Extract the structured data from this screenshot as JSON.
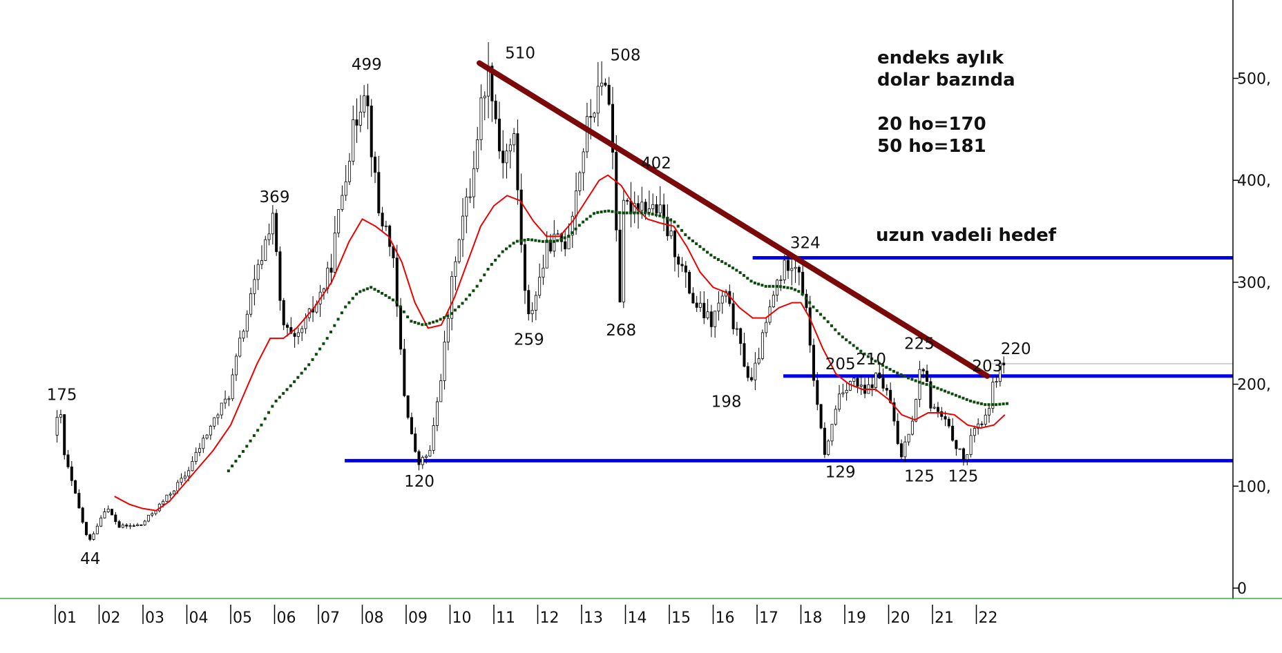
{
  "chart_data": {
    "type": "candlestick",
    "interval": "monthly",
    "y_axis_labels": [
      "0",
      "100,",
      "200,",
      "300,",
      "400,",
      "500,"
    ],
    "ylim": [
      0,
      570
    ],
    "x_axis_labels": [
      "01",
      "02",
      "03",
      "04",
      "05",
      "06",
      "07",
      "08",
      "09",
      "10",
      "11",
      "12",
      "13",
      "14",
      "15",
      "16",
      "17",
      "18",
      "19",
      "20",
      "21",
      "22"
    ],
    "annotations": {
      "title_line1": "endeks aylık",
      "title_line2": "dolar bazında",
      "ma20": "20 ho=170",
      "ma50": "50 ho=181",
      "target": "uzun vadeli hedef"
    },
    "level_labels": [
      {
        "text": "175",
        "x": 1.15,
        "y": 175
      },
      {
        "text": "44",
        "x": 1.8,
        "y": 44
      },
      {
        "text": "369",
        "x": 6.0,
        "y": 369
      },
      {
        "text": "499",
        "x": 8.1,
        "y": 499
      },
      {
        "text": "120",
        "x": 9.3,
        "y": 120
      },
      {
        "text": "510",
        "x": 11.6,
        "y": 510
      },
      {
        "text": "259",
        "x": 11.8,
        "y": 259
      },
      {
        "text": "508",
        "x": 14.0,
        "y": 508
      },
      {
        "text": "402",
        "x": 14.7,
        "y": 402
      },
      {
        "text": "268",
        "x": 13.9,
        "y": 268
      },
      {
        "text": "198",
        "x": 16.3,
        "y": 198
      },
      {
        "text": "324",
        "x": 18.1,
        "y": 324
      },
      {
        "text": "205",
        "x": 18.9,
        "y": 205
      },
      {
        "text": "210",
        "x": 19.6,
        "y": 210
      },
      {
        "text": "129",
        "x": 18.9,
        "y": 129
      },
      {
        "text": "225",
        "x": 20.7,
        "y": 225
      },
      {
        "text": "125",
        "x": 20.7,
        "y": 125
      },
      {
        "text": "203",
        "x": 22.25,
        "y": 203
      },
      {
        "text": "125",
        "x": 21.7,
        "y": 125
      },
      {
        "text": "220",
        "x": 22.9,
        "y": 220
      }
    ],
    "lines": {
      "support_low": {
        "y": 125,
        "x0": 7.6,
        "x1": 29.5,
        "color": "#0000ee"
      },
      "resistance_mid": {
        "y": 208,
        "x0": 17.6,
        "x1": 29.5,
        "color": "#0000ee"
      },
      "target_level": {
        "y": 324,
        "x0": 16.9,
        "x1": 29.5,
        "color": "#0000ee"
      },
      "current_price": {
        "y": 220,
        "x0": 22.3,
        "x1": 29.5,
        "color": "#aaaaaa"
      },
      "downtrend": {
        "x0": 10.67,
        "y0": 515,
        "x1": 22.25,
        "y1": 208,
        "color": "#7a0a0a"
      }
    },
    "pivots": [
      [
        1.0,
        150
      ],
      [
        1.15,
        175
      ],
      [
        1.25,
        130
      ],
      [
        1.8,
        44
      ],
      [
        2.2,
        80
      ],
      [
        2.5,
        60
      ],
      [
        3.0,
        62
      ],
      [
        3.5,
        85
      ],
      [
        4.0,
        110
      ],
      [
        4.6,
        160
      ],
      [
        5.0,
        190
      ],
      [
        5.3,
        250
      ],
      [
        5.6,
        300
      ],
      [
        6.0,
        369
      ],
      [
        6.2,
        260
      ],
      [
        6.5,
        240
      ],
      [
        7.0,
        280
      ],
      [
        7.3,
        310
      ],
      [
        7.7,
        420
      ],
      [
        8.1,
        499
      ],
      [
        8.4,
        370
      ],
      [
        8.7,
        340
      ],
      [
        9.0,
        190
      ],
      [
        9.3,
        120
      ],
      [
        9.6,
        135
      ],
      [
        9.9,
        230
      ],
      [
        10.2,
        340
      ],
      [
        10.5,
        390
      ],
      [
        10.8,
        490
      ],
      [
        10.95,
        510
      ],
      [
        11.2,
        420
      ],
      [
        11.5,
        440
      ],
      [
        11.8,
        259
      ],
      [
        12.0,
        290
      ],
      [
        12.3,
        340
      ],
      [
        12.7,
        340
      ],
      [
        13.2,
        460
      ],
      [
        13.5,
        490
      ],
      [
        13.6,
        508
      ],
      [
        13.8,
        402
      ],
      [
        14.0,
        370
      ],
      [
        13.9,
        268
      ],
      [
        14.3,
        380
      ],
      [
        14.8,
        370
      ],
      [
        15.2,
        330
      ],
      [
        15.6,
        280
      ],
      [
        16.0,
        260
      ],
      [
        16.3,
        290
      ],
      [
        16.7,
        230
      ],
      [
        16.9,
        198
      ],
      [
        17.2,
        250
      ],
      [
        17.5,
        300
      ],
      [
        17.8,
        324
      ],
      [
        18.0,
        315
      ],
      [
        18.2,
        260
      ],
      [
        18.4,
        180
      ],
      [
        18.6,
        129
      ],
      [
        18.9,
        190
      ],
      [
        19.2,
        205
      ],
      [
        19.5,
        190
      ],
      [
        19.8,
        210
      ],
      [
        20.1,
        180
      ],
      [
        20.3,
        125
      ],
      [
        20.6,
        170
      ],
      [
        20.8,
        225
      ],
      [
        21.0,
        180
      ],
      [
        21.3,
        165
      ],
      [
        21.7,
        130
      ],
      [
        21.8,
        125
      ],
      [
        22.0,
        160
      ],
      [
        22.25,
        165
      ],
      [
        22.45,
        203
      ],
      [
        22.6,
        220
      ]
    ],
    "ma20": [
      [
        2.35,
        90
      ],
      [
        2.7,
        82
      ],
      [
        3.0,
        78
      ],
      [
        3.3,
        76
      ],
      [
        3.6,
        85
      ],
      [
        3.9,
        100
      ],
      [
        4.2,
        115
      ],
      [
        4.6,
        135
      ],
      [
        5.0,
        160
      ],
      [
        5.3,
        190
      ],
      [
        5.6,
        220
      ],
      [
        5.9,
        245
      ],
      [
        6.2,
        245
      ],
      [
        6.5,
        255
      ],
      [
        6.9,
        275
      ],
      [
        7.3,
        300
      ],
      [
        7.7,
        340
      ],
      [
        8.0,
        362
      ],
      [
        8.3,
        355
      ],
      [
        8.6,
        345
      ],
      [
        8.9,
        320
      ],
      [
        9.2,
        280
      ],
      [
        9.5,
        255
      ],
      [
        9.8,
        258
      ],
      [
        10.1,
        285
      ],
      [
        10.4,
        320
      ],
      [
        10.7,
        355
      ],
      [
        11.0,
        375
      ],
      [
        11.3,
        385
      ],
      [
        11.6,
        380
      ],
      [
        11.9,
        360
      ],
      [
        12.2,
        345
      ],
      [
        12.5,
        345
      ],
      [
        12.8,
        360
      ],
      [
        13.1,
        380
      ],
      [
        13.4,
        400
      ],
      [
        13.6,
        405
      ],
      [
        13.9,
        395
      ],
      [
        14.2,
        375
      ],
      [
        14.5,
        362
      ],
      [
        14.8,
        358
      ],
      [
        15.1,
        355
      ],
      [
        15.4,
        335
      ],
      [
        15.7,
        310
      ],
      [
        16.0,
        295
      ],
      [
        16.3,
        290
      ],
      [
        16.6,
        275
      ],
      [
        16.9,
        265
      ],
      [
        17.2,
        265
      ],
      [
        17.5,
        275
      ],
      [
        17.8,
        280
      ],
      [
        18.0,
        280
      ],
      [
        18.2,
        265
      ],
      [
        18.5,
        235
      ],
      [
        18.8,
        210
      ],
      [
        19.1,
        200
      ],
      [
        19.4,
        195
      ],
      [
        19.7,
        195
      ],
      [
        20.0,
        185
      ],
      [
        20.3,
        170
      ],
      [
        20.6,
        165
      ],
      [
        20.9,
        172
      ],
      [
        21.2,
        172
      ],
      [
        21.5,
        170
      ],
      [
        21.8,
        160
      ],
      [
        22.1,
        157
      ],
      [
        22.4,
        160
      ],
      [
        22.65,
        170
      ]
    ],
    "ma50": [
      [
        4.95,
        115
      ],
      [
        5.3,
        135
      ],
      [
        5.7,
        160
      ],
      [
        6.0,
        182
      ],
      [
        6.4,
        200
      ],
      [
        6.8,
        220
      ],
      [
        7.2,
        245
      ],
      [
        7.6,
        275
      ],
      [
        7.9,
        290
      ],
      [
        8.2,
        295
      ],
      [
        8.5,
        288
      ],
      [
        8.8,
        280
      ],
      [
        9.1,
        262
      ],
      [
        9.4,
        258
      ],
      [
        9.7,
        262
      ],
      [
        10.0,
        268
      ],
      [
        10.3,
        280
      ],
      [
        10.6,
        295
      ],
      [
        10.9,
        315
      ],
      [
        11.2,
        330
      ],
      [
        11.5,
        340
      ],
      [
        11.8,
        342
      ],
      [
        12.1,
        340
      ],
      [
        12.4,
        340
      ],
      [
        12.7,
        345
      ],
      [
        13.0,
        358
      ],
      [
        13.3,
        368
      ],
      [
        13.6,
        370
      ],
      [
        13.9,
        368
      ],
      [
        14.2,
        368
      ],
      [
        14.5,
        368
      ],
      [
        14.8,
        365
      ],
      [
        15.1,
        360
      ],
      [
        15.4,
        345
      ],
      [
        15.7,
        335
      ],
      [
        16.0,
        325
      ],
      [
        16.3,
        318
      ],
      [
        16.6,
        310
      ],
      [
        16.9,
        300
      ],
      [
        17.2,
        296
      ],
      [
        17.5,
        296
      ],
      [
        17.8,
        294
      ],
      [
        18.0,
        290
      ],
      [
        18.3,
        275
      ],
      [
        18.6,
        262
      ],
      [
        18.9,
        248
      ],
      [
        19.2,
        238
      ],
      [
        19.5,
        228
      ],
      [
        19.8,
        220
      ],
      [
        20.1,
        213
      ],
      [
        20.4,
        207
      ],
      [
        20.7,
        202
      ],
      [
        21.0,
        198
      ],
      [
        21.3,
        193
      ],
      [
        21.6,
        188
      ],
      [
        21.9,
        183
      ],
      [
        22.2,
        180
      ],
      [
        22.45,
        180
      ],
      [
        22.7,
        181
      ]
    ]
  }
}
